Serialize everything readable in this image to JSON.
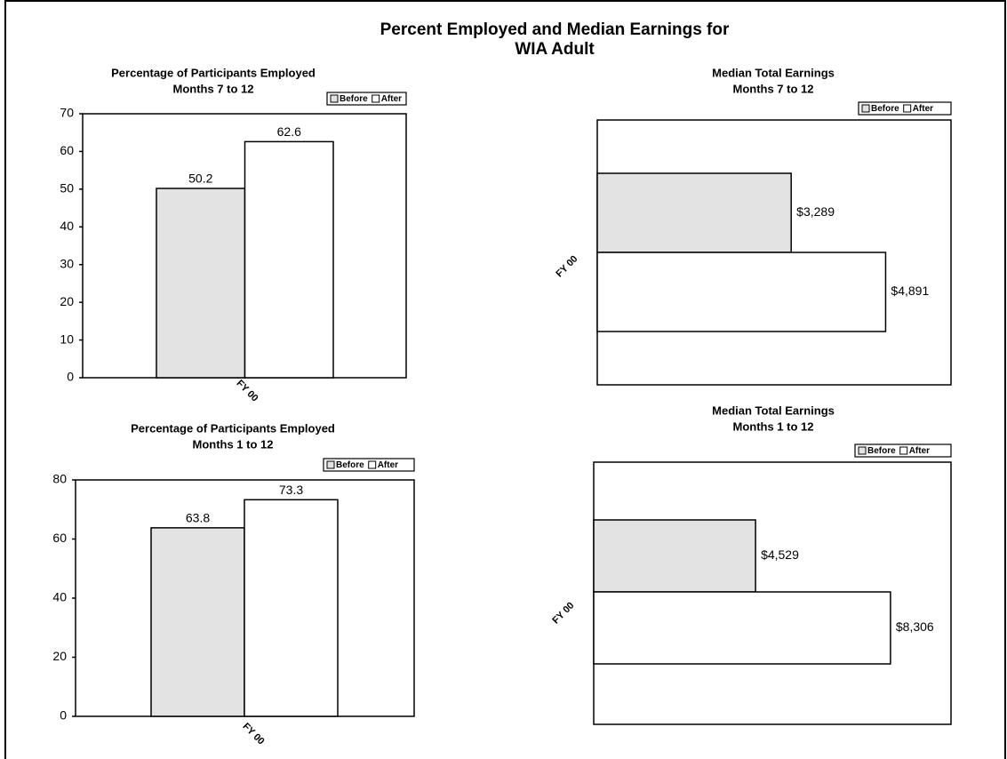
{
  "title": [
    "Percent Employed and Median Earnings for",
    "WIA Adult"
  ],
  "chart_data": [
    {
      "type": "bar",
      "orientation": "vertical",
      "title": "Percentage of Participants Employed",
      "subtitle": "Months 7 to 12",
      "categories": [
        "FY 00"
      ],
      "series": [
        {
          "name": "Before",
          "color": "#e3e3e3",
          "values": [
            50.2
          ]
        },
        {
          "name": "After",
          "color": "#ffffff",
          "values": [
            62.6
          ]
        }
      ],
      "ylim": [
        0,
        70
      ],
      "yticks": [
        0,
        10,
        20,
        30,
        40,
        50,
        60,
        70
      ],
      "grid": false,
      "legend": "top-right"
    },
    {
      "type": "bar",
      "orientation": "horizontal",
      "title": "Median Total Earnings",
      "subtitle": "Months 7 to 12",
      "categories": [
        "FY 00"
      ],
      "series": [
        {
          "name": "Before",
          "color": "#e3e3e3",
          "values": [
            3289
          ],
          "value_labels": [
            "$3,289"
          ]
        },
        {
          "name": "After",
          "color": "#ffffff",
          "values": [
            4891
          ],
          "value_labels": [
            "$4,891"
          ]
        }
      ],
      "xlim": [
        0,
        6000
      ],
      "grid": false,
      "legend": "top-right"
    },
    {
      "type": "bar",
      "orientation": "vertical",
      "title": "Percentage of Participants Employed",
      "subtitle": "Months 1 to 12",
      "categories": [
        "FY 00"
      ],
      "series": [
        {
          "name": "Before",
          "color": "#e3e3e3",
          "values": [
            63.8
          ]
        },
        {
          "name": "After",
          "color": "#ffffff",
          "values": [
            73.3
          ]
        }
      ],
      "ylim": [
        0,
        80
      ],
      "yticks": [
        0,
        20,
        40,
        60,
        80
      ],
      "grid": false,
      "legend": "top-right"
    },
    {
      "type": "bar",
      "orientation": "horizontal",
      "title": "Median Total Earnings",
      "subtitle": "Months 1 to 12",
      "categories": [
        "FY 00"
      ],
      "series": [
        {
          "name": "Before",
          "color": "#e3e3e3",
          "values": [
            4529
          ],
          "value_labels": [
            "$4,529"
          ]
        },
        {
          "name": "After",
          "color": "#ffffff",
          "values": [
            8306
          ],
          "value_labels": [
            "$8,306"
          ]
        }
      ],
      "xlim": [
        0,
        10000
      ],
      "grid": false,
      "legend": "top-right"
    }
  ]
}
